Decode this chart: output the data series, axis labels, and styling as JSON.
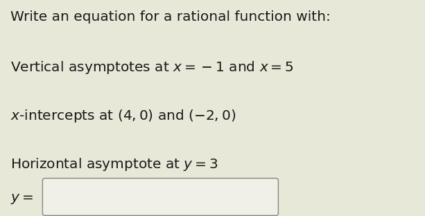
{
  "background_color": "#e8e8d8",
  "title_text": "Write an equation for a rational function with:",
  "line1_plain": "Vertical asymptotes at ",
  "line1_math": "x = − 1 and x = 5",
  "line2_plain": "x-intercepts at (4, 0) and ( − 2, 0)",
  "line3_plain": "Horizontal asymptote at ",
  "line3_math": "y = 3",
  "label_y": "y =",
  "text_color": "#1a1a1a",
  "box_color": "#f0f0e8",
  "box_edge_color": "#888880",
  "title_fontsize": 14.5,
  "body_fontsize": 14.5,
  "label_fontsize": 14.5
}
